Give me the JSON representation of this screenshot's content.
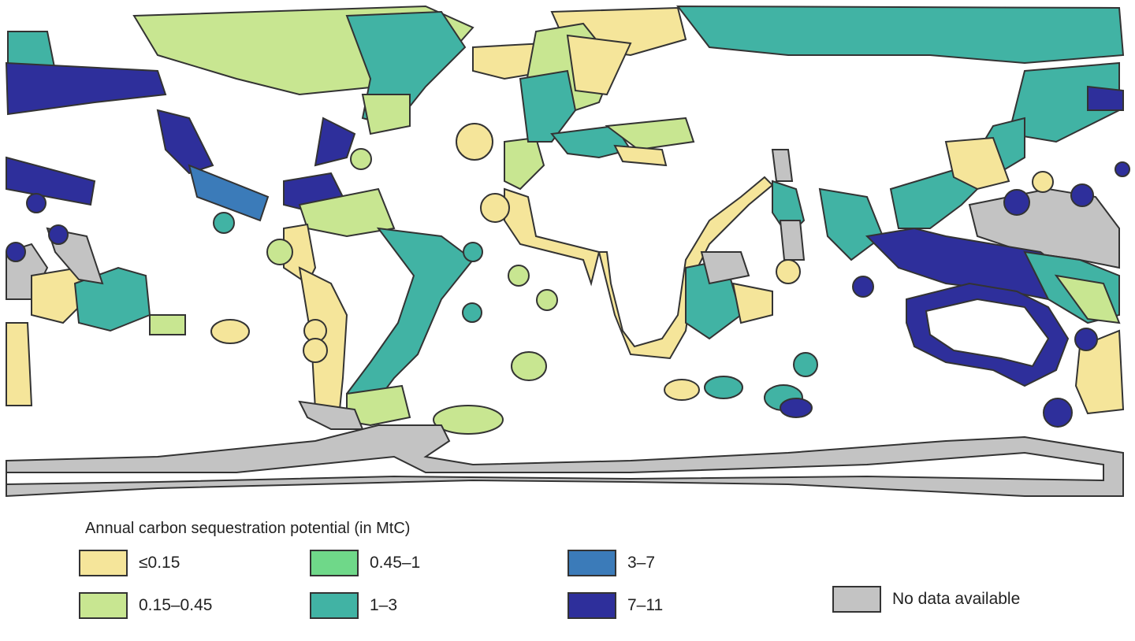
{
  "legend": {
    "title": "Annual carbon sequestration potential (in MtC)",
    "items": [
      {
        "label": "≤0.15",
        "color": "#f5e59a"
      },
      {
        "label": "0.15–0.45",
        "color": "#c8e691"
      },
      {
        "label": "0.45–1",
        "color": "#6fd889"
      },
      {
        "label": "1–3",
        "color": "#41b3a4"
      },
      {
        "label": "3–7",
        "color": "#3b7bb9"
      },
      {
        "label": "7–11",
        "color": "#2e2f9b"
      },
      {
        "label": "No data available",
        "color": "#c3c3c3"
      }
    ]
  },
  "colors": {
    "land": "#ffffff",
    "coastline": "#111111",
    "border": "#333333"
  }
}
